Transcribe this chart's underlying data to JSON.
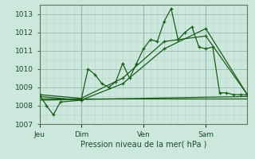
{
  "bg_color": "#cce8dd",
  "grid_color_major": "#9dbfb5",
  "grid_color_minor": "#b8d5cc",
  "line_color": "#1a5c1a",
  "ylabel": "Pression niveau de la mer( hPa )",
  "ylim": [
    1007,
    1013.5
  ],
  "yticks": [
    1007,
    1008,
    1009,
    1010,
    1011,
    1012,
    1013
  ],
  "day_labels": [
    "Jeu",
    "Dim",
    "Ven",
    "Sam"
  ],
  "day_positions": [
    0,
    48,
    120,
    192
  ],
  "total_points": 240,
  "series1": {
    "x": [
      0,
      8,
      16,
      24,
      48,
      56,
      64,
      72,
      80,
      88,
      96,
      104,
      112,
      120,
      128,
      136,
      144,
      152,
      160,
      168,
      176,
      184,
      192,
      200,
      208,
      216,
      224,
      232,
      240
    ],
    "y": [
      1008.6,
      1008.0,
      1007.5,
      1008.2,
      1008.3,
      1010.0,
      1009.7,
      1009.2,
      1009.0,
      1009.3,
      1010.3,
      1009.5,
      1010.3,
      1011.1,
      1011.6,
      1011.5,
      1012.6,
      1013.3,
      1011.6,
      1012.0,
      1012.3,
      1011.2,
      1011.1,
      1011.2,
      1008.7,
      1008.7,
      1008.6,
      1008.6,
      1008.6
    ]
  },
  "series2": {
    "x": [
      0,
      48,
      96,
      144,
      192,
      240
    ],
    "y": [
      1008.5,
      1008.3,
      1009.2,
      1011.1,
      1012.2,
      1008.6
    ]
  },
  "series3": {
    "x": [
      0,
      48,
      96,
      144,
      192,
      240
    ],
    "y": [
      1008.6,
      1008.4,
      1009.5,
      1011.5,
      1011.8,
      1008.6
    ]
  },
  "series4": {
    "x": [
      0,
      240
    ],
    "y": [
      1008.4,
      1008.4
    ]
  },
  "series5": {
    "x": [
      0,
      240
    ],
    "y": [
      1008.3,
      1008.5
    ]
  }
}
